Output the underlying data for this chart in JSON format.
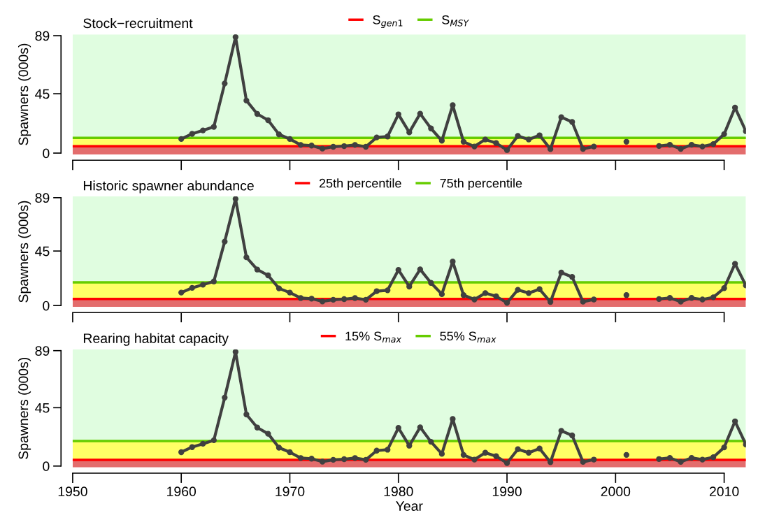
{
  "chart_data": [
    {
      "type": "line",
      "title": "Stock−recruitment",
      "ylabel": "Spawners (000s)",
      "tick_labels": "y",
      "marker": "circle",
      "legend": "top",
      "x": [
        1960,
        1961,
        1962,
        1963,
        1964,
        1965,
        1966,
        1967,
        1968,
        1969,
        1970,
        1971,
        1972,
        1973,
        1974,
        1975,
        1976,
        1977,
        1978,
        1979,
        1980,
        1981,
        1982,
        1983,
        1984,
        1985,
        1986,
        1987,
        1988,
        1989,
        1990,
        1991,
        1992,
        1993,
        1994,
        1995,
        1996,
        1997,
        1998,
        1999,
        2000,
        2001,
        2002,
        2003,
        2004,
        2005,
        2006,
        2007,
        2008,
        2009,
        2010,
        2011,
        2012
      ],
      "series": [
        {
          "color": "#404040",
          "values": [
            10.7,
            14.6,
            17.2,
            19.9,
            52.8,
            88,
            39.8,
            29.7,
            24.9,
            14.2,
            10.7,
            6.2,
            5.7,
            3.4,
            4.8,
            5.3,
            6.2,
            4.8,
            11.9,
            12.6,
            29.4,
            15.7,
            29.9,
            18.7,
            9.4,
            36.3,
            8.6,
            5.0,
            10.3,
            7.6,
            2.3,
            13.0,
            10.3,
            13.5,
            3.0,
            27.2,
            23.6,
            3.2,
            5.0,
            null,
            null,
            8.6,
            null,
            null,
            5.4,
            6.3,
            3.2,
            6.3,
            5.0,
            6.8,
            14.4,
            34.5,
            16.6
          ]
        }
      ],
      "xlim": [
        1950,
        2012
      ],
      "xticks": [
        1950,
        1960,
        1970,
        1980,
        1990,
        2000,
        2010
      ],
      "ylim": [
        -1,
        90
      ],
      "yticks": [
        0,
        45,
        89
      ],
      "ref_lines": [
        {
          "axis": "y",
          "value": 5.2,
          "label": "S$_{gen1}$",
          "color": "#ff0000"
        },
        {
          "axis": "y",
          "value": 11.6,
          "label": "S$_{MSY}$",
          "color": "#66cc00"
        }
      ],
      "bands": [
        {
          "axis": "y",
          "from": -1,
          "to": 5.2,
          "color": "#e36d6d"
        },
        {
          "axis": "y",
          "from": 5.2,
          "to": 11.6,
          "color": "#ffff66"
        },
        {
          "axis": "y",
          "from": 11.6,
          "to": 90,
          "color": "#e0fde0"
        }
      ]
    },
    {
      "type": "line",
      "title": "Historic spawner abundance",
      "ylabel": "Spawners (000s)",
      "tick_labels": "y",
      "marker": "circle",
      "legend": "top",
      "x": [
        1960,
        1961,
        1962,
        1963,
        1964,
        1965,
        1966,
        1967,
        1968,
        1969,
        1970,
        1971,
        1972,
        1973,
        1974,
        1975,
        1976,
        1977,
        1978,
        1979,
        1980,
        1981,
        1982,
        1983,
        1984,
        1985,
        1986,
        1987,
        1988,
        1989,
        1990,
        1991,
        1992,
        1993,
        1994,
        1995,
        1996,
        1997,
        1998,
        1999,
        2000,
        2001,
        2002,
        2003,
        2004,
        2005,
        2006,
        2007,
        2008,
        2009,
        2010,
        2011,
        2012
      ],
      "series": [
        {
          "color": "#404040",
          "values": [
            10.7,
            14.6,
            17.2,
            19.9,
            52.8,
            88,
            39.8,
            29.7,
            24.9,
            14.2,
            10.7,
            6.2,
            5.7,
            3.4,
            4.8,
            5.3,
            6.2,
            4.8,
            11.9,
            12.6,
            29.4,
            15.7,
            29.9,
            18.7,
            9.4,
            36.3,
            8.6,
            5.0,
            10.3,
            7.6,
            2.3,
            13.0,
            10.3,
            13.5,
            3.0,
            27.2,
            23.6,
            3.2,
            5.0,
            null,
            null,
            8.6,
            null,
            null,
            5.4,
            6.3,
            3.2,
            6.3,
            5.0,
            6.8,
            14.4,
            34.5,
            16.6
          ]
        }
      ],
      "xlim": [
        1950,
        2012
      ],
      "xticks": [
        1950,
        1960,
        1970,
        1980,
        1990,
        2000,
        2010
      ],
      "ylim": [
        -1,
        90
      ],
      "yticks": [
        0,
        45,
        89
      ],
      "ref_lines": [
        {
          "axis": "y",
          "value": 5.5,
          "label": "25th percentile",
          "color": "#ff0000"
        },
        {
          "axis": "y",
          "value": 19.2,
          "label": "75th percentile",
          "color": "#66cc00"
        }
      ],
      "bands": [
        {
          "axis": "y",
          "from": -1,
          "to": 5.5,
          "color": "#e36d6d"
        },
        {
          "axis": "y",
          "from": 5.5,
          "to": 19.2,
          "color": "#ffff66"
        },
        {
          "axis": "y",
          "from": 19.2,
          "to": 90,
          "color": "#e0fde0"
        }
      ]
    },
    {
      "type": "line",
      "title": "Rearing habitat capacity",
      "ylabel": "Spawners (000s)",
      "xlabel": "Year",
      "marker": "circle",
      "legend": "top",
      "x": [
        1960,
        1961,
        1962,
        1963,
        1964,
        1965,
        1966,
        1967,
        1968,
        1969,
        1970,
        1971,
        1972,
        1973,
        1974,
        1975,
        1976,
        1977,
        1978,
        1979,
        1980,
        1981,
        1982,
        1983,
        1984,
        1985,
        1986,
        1987,
        1988,
        1989,
        1990,
        1991,
        1992,
        1993,
        1994,
        1995,
        1996,
        1997,
        1998,
        1999,
        2000,
        2001,
        2002,
        2003,
        2004,
        2005,
        2006,
        2007,
        2008,
        2009,
        2010,
        2011,
        2012
      ],
      "series": [
        {
          "color": "#404040",
          "values": [
            10.7,
            14.6,
            17.2,
            19.9,
            52.8,
            88,
            39.8,
            29.7,
            24.9,
            14.2,
            10.7,
            6.2,
            5.7,
            3.4,
            4.8,
            5.3,
            6.2,
            4.8,
            11.9,
            12.6,
            29.4,
            15.7,
            29.9,
            18.7,
            9.4,
            36.3,
            8.6,
            5.0,
            10.3,
            7.6,
            2.3,
            13.0,
            10.3,
            13.5,
            3.0,
            27.2,
            23.6,
            3.2,
            5.0,
            null,
            null,
            8.6,
            null,
            null,
            5.4,
            6.3,
            3.2,
            6.3,
            5.0,
            6.8,
            14.4,
            34.5,
            16.6
          ]
        }
      ],
      "xlim": [
        1950,
        2012
      ],
      "xticks": [
        1950,
        1960,
        1970,
        1980,
        1990,
        2000,
        2010
      ],
      "ylim": [
        -1,
        90
      ],
      "yticks": [
        0,
        45,
        89
      ],
      "ref_lines": [
        {
          "axis": "y",
          "value": 4.8,
          "label": "15% S$_{max}$",
          "color": "#ff0000"
        },
        {
          "axis": "y",
          "value": 19.3,
          "label": "55% S$_{max}$",
          "color": "#66cc00"
        }
      ],
      "bands": [
        {
          "axis": "y",
          "from": -1,
          "to": 4.8,
          "color": "#e36d6d"
        },
        {
          "axis": "y",
          "from": 4.8,
          "to": 19.3,
          "color": "#ffff66"
        },
        {
          "axis": "y",
          "from": 19.3,
          "to": 90,
          "color": "#e0fde0"
        }
      ]
    }
  ]
}
